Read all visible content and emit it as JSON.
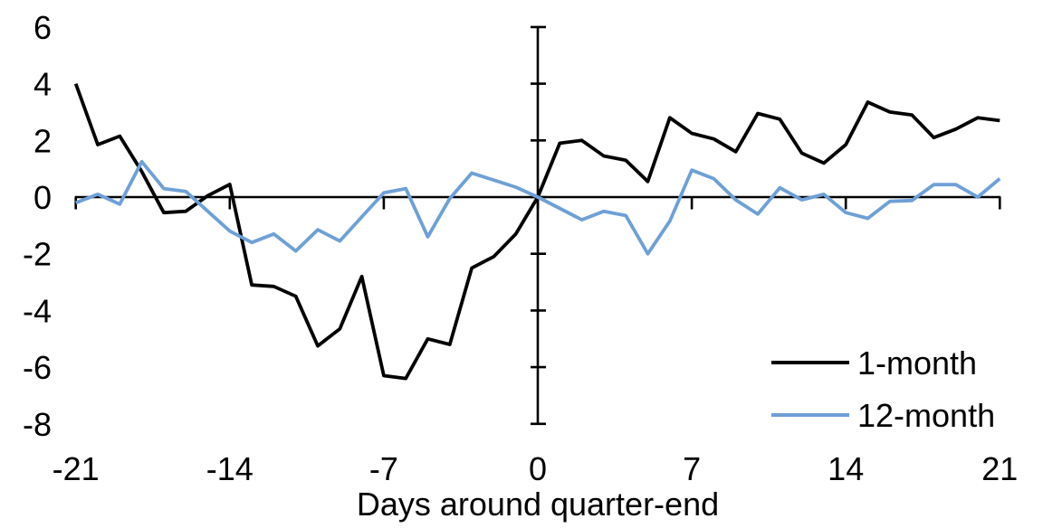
{
  "figure": {
    "background": "#ffffff",
    "axis_color": "#000000",
    "text_color": "#000000"
  },
  "chart_data": {
    "type": "line",
    "title": "",
    "xlabel": "Days around quarter-end",
    "ylabel": "",
    "xlim": [
      -21,
      21
    ],
    "ylim": [
      -8,
      6
    ],
    "xticks": [
      -21,
      -14,
      -7,
      0,
      7,
      14,
      21
    ],
    "yticks": [
      6,
      4,
      2,
      0,
      -2,
      -4,
      -6,
      -8
    ],
    "grid": false,
    "legend_position": "inside-lower-right",
    "x": [
      -21,
      -20,
      -19,
      -18,
      -17,
      -16,
      -15,
      -14,
      -13,
      -12,
      -11,
      -10,
      -9,
      -8,
      -7,
      -6,
      -5,
      -4,
      -3,
      -2,
      -1,
      0,
      1,
      2,
      3,
      4,
      5,
      6,
      7,
      8,
      9,
      10,
      11,
      12,
      13,
      14,
      15,
      16,
      17,
      18,
      19,
      20,
      21
    ],
    "series": [
      {
        "name": "1-month",
        "color": "#000000",
        "values": [
          4.0,
          1.85,
          2.15,
          0.9,
          -0.55,
          -0.5,
          0.05,
          0.45,
          -3.1,
          -3.15,
          -3.5,
          -5.25,
          -4.65,
          -2.8,
          -6.3,
          -6.4,
          -5.0,
          -5.2,
          -2.5,
          -2.1,
          -1.3,
          0.0,
          1.9,
          2.0,
          1.45,
          1.3,
          0.55,
          2.8,
          2.25,
          2.05,
          1.6,
          2.95,
          2.75,
          1.55,
          1.2,
          1.85,
          3.35,
          3.0,
          2.9,
          2.1,
          2.4,
          2.8,
          2.7
        ]
      },
      {
        "name": "12-month",
        "color": "#6EA0D7",
        "values": [
          -0.2,
          0.1,
          -0.25,
          1.25,
          0.3,
          0.2,
          -0.5,
          -1.2,
          -1.6,
          -1.3,
          -1.9,
          -1.15,
          -1.55,
          -0.7,
          0.15,
          0.3,
          -1.4,
          -0.05,
          0.85,
          0.6,
          0.35,
          0.0,
          -0.4,
          -0.8,
          -0.5,
          -0.65,
          -2.0,
          -0.85,
          0.95,
          0.65,
          -0.1,
          -0.6,
          0.33,
          -0.1,
          0.1,
          -0.55,
          -0.75,
          -0.15,
          -0.12,
          0.44,
          0.44,
          0.0,
          0.65
        ]
      }
    ]
  }
}
